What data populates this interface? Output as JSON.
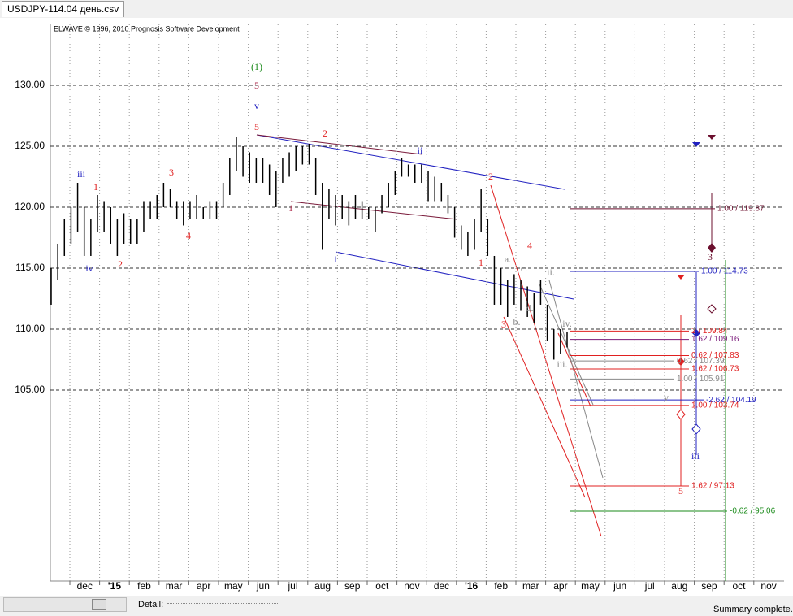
{
  "window": {
    "tab": "USDJPY-114.04 день.csv",
    "detail_label": "Detail:",
    "status": "Summary complete."
  },
  "chart_data": {
    "type": "range-bar",
    "credit": "ELWAVE © 1996, 2010 Prognosis Software Development",
    "color": "#000000",
    "ylim": [
      89.33,
      135
    ],
    "yticks": [
      {
        "value": 105,
        "label": "105.00"
      },
      {
        "value": 110,
        "label": "110.00"
      },
      {
        "value": 115,
        "label": "115.00"
      },
      {
        "value": 120,
        "label": "120.00"
      },
      {
        "value": 125,
        "label": "125.00"
      },
      {
        "value": 130,
        "label": "130.00"
      }
    ],
    "grid": true,
    "categories": [
      "dec",
      "'15",
      "feb",
      "mar",
      "apr",
      "may",
      "jun",
      "jul",
      "aug",
      "sep",
      "oct",
      "nov",
      "dec",
      "'16",
      "feb",
      "mar",
      "apr",
      "may",
      "jun",
      "jul",
      "aug",
      "sep",
      "oct",
      "nov"
    ],
    "lows": [
      112,
      114,
      116,
      117,
      118,
      116,
      116,
      118,
      118,
      117,
      116,
      117,
      117,
      117,
      118,
      119,
      119,
      120,
      120,
      119,
      118.5,
      119,
      119,
      119,
      119,
      119,
      120,
      121,
      123,
      122.5,
      122,
      122,
      122,
      121,
      120,
      122,
      122.5,
      123,
      123.5,
      123.5,
      121,
      116.5,
      119,
      118.5,
      119,
      118.5,
      119,
      119,
      119,
      118,
      119.5,
      120,
      121,
      122.5,
      122.5,
      122,
      122,
      120.5,
      120.5,
      120.5,
      119.5,
      117.5,
      116.5,
      116,
      116.5,
      118,
      116,
      112,
      112,
      111,
      112,
      111.5,
      111,
      110.5,
      112,
      109,
      107.5,
      108,
      108.5
    ],
    "highs": [
      115,
      117,
      119,
      120,
      122,
      120,
      119,
      121,
      120.5,
      120,
      119,
      119.5,
      119,
      119,
      120.5,
      120.5,
      121,
      122,
      121.5,
      120.5,
      120.5,
      120.5,
      121,
      120,
      120.5,
      120.5,
      122,
      124,
      125.8,
      125,
      124.5,
      124,
      124,
      123.5,
      123,
      124,
      124.5,
      125,
      125,
      125.2,
      124,
      122,
      121.5,
      121,
      121,
      120.5,
      121,
      120.5,
      120,
      120,
      121,
      122,
      123,
      124,
      123.5,
      123.5,
      123.5,
      123,
      122.5,
      122,
      121,
      120,
      118.5,
      118,
      119,
      121.5,
      119,
      116,
      115,
      114,
      114.5,
      114,
      113.5,
      113,
      114,
      112,
      110,
      110,
      109.8
    ],
    "levels": [
      {
        "value": 119.87,
        "label": "1.00 / 119.87",
        "color": "#6b0f2e"
      },
      {
        "value": 114.73,
        "label": "1.00 / 114.73",
        "color": "#2020c0"
      },
      {
        "value": 109.84,
        "label": "2 / 109.84",
        "color": "#e02020"
      },
      {
        "value": 109.16,
        "label": "1.62 / 109.16",
        "color": "#7a1a7a"
      },
      {
        "value": 107.83,
        "label": "0.62 / 107.83",
        "color": "#e02020"
      },
      {
        "value": 107.39,
        "label": "0.62 / 107.39",
        "color": "#888888"
      },
      {
        "value": 106.73,
        "label": "1.62 / 106.73",
        "color": "#e02020"
      },
      {
        "value": 105.91,
        "label": "1.00 / 105.91",
        "color": "#888888"
      },
      {
        "value": 104.19,
        "label": "-2.62 / 104.19",
        "color": "#2020c0"
      },
      {
        "value": 103.74,
        "label": "1.00 / 103.74",
        "color": "#e02020"
      },
      {
        "value": 97.13,
        "label": "1.62 / 97.13",
        "color": "#e02020"
      },
      {
        "value": 95.06,
        "label": "-0.62 / 95.06",
        "color": "#1a8a1a"
      }
    ],
    "annotations": [
      {
        "text": "(1)",
        "color": "#1a8a1a"
      },
      {
        "text": "5",
        "color": "#b03050"
      },
      {
        "text": "v",
        "color": "#2020c0"
      },
      {
        "text": "5",
        "color": "#e02020"
      },
      {
        "text": "iii",
        "color": "#2020c0"
      },
      {
        "text": "1",
        "color": "#e02020"
      },
      {
        "text": "iv",
        "color": "#2020c0"
      },
      {
        "text": "2",
        "color": "#e02020"
      },
      {
        "text": "3",
        "color": "#e02020"
      },
      {
        "text": "4",
        "color": "#e02020"
      },
      {
        "text": "2",
        "color": "#e02020"
      },
      {
        "text": "1",
        "color": "#b03050"
      },
      {
        "text": "i",
        "color": "#2020c0"
      },
      {
        "text": "ii",
        "color": "#2020c0"
      },
      {
        "text": "2",
        "color": "#e02020"
      },
      {
        "text": "1",
        "color": "#e02020"
      },
      {
        "text": "3",
        "color": "#e02020"
      },
      {
        "text": "4",
        "color": "#e02020"
      },
      {
        "text": "3",
        "color": "#6b0f2e"
      },
      {
        "text": "iii",
        "color": "#2020c0"
      },
      {
        "text": "5",
        "color": "#e02020"
      },
      {
        "text": "a.",
        "color": "#888888"
      },
      {
        "text": "b.",
        "color": "#888888"
      },
      {
        "text": "c.",
        "color": "#888888"
      },
      {
        "text": "d.",
        "color": "#888888"
      },
      {
        "text": "ii.",
        "color": "#888888"
      },
      {
        "text": "iv.",
        "color": "#888888"
      },
      {
        "text": "iii.",
        "color": "#888888"
      },
      {
        "text": "v",
        "color": "#888888"
      }
    ]
  }
}
